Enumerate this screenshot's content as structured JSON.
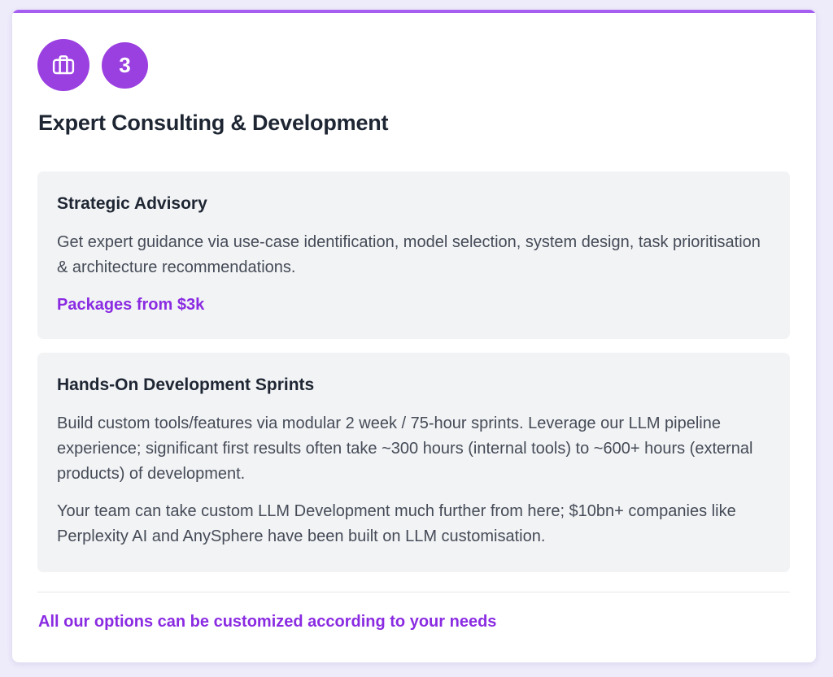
{
  "card": {
    "step_number": "3",
    "icon": "briefcase-icon",
    "title": "Expert Consulting & Development",
    "accent_color": "#9a3fe0",
    "highlight_color": "#8a2be2"
  },
  "panels": [
    {
      "title": "Strategic Advisory",
      "description": "Get expert guidance via use-case identification, model selection, system design, task prioritisation & architecture recommendations.",
      "price": "Packages from $3k"
    },
    {
      "title": "Hands-On Development Sprints",
      "description": "Build custom tools/features via modular 2 week / 75-hour sprints. Leverage our LLM pipeline experience; significant first results often take ~300 hours (internal tools) to ~600+ hours (external products) of development.",
      "description_2": "Your team can take custom LLM Development much further from here; $10bn+ companies like Perplexity AI and AnySphere have been built on LLM customisation."
    }
  ],
  "footer": {
    "note": "All our options can be customized according to your needs"
  }
}
